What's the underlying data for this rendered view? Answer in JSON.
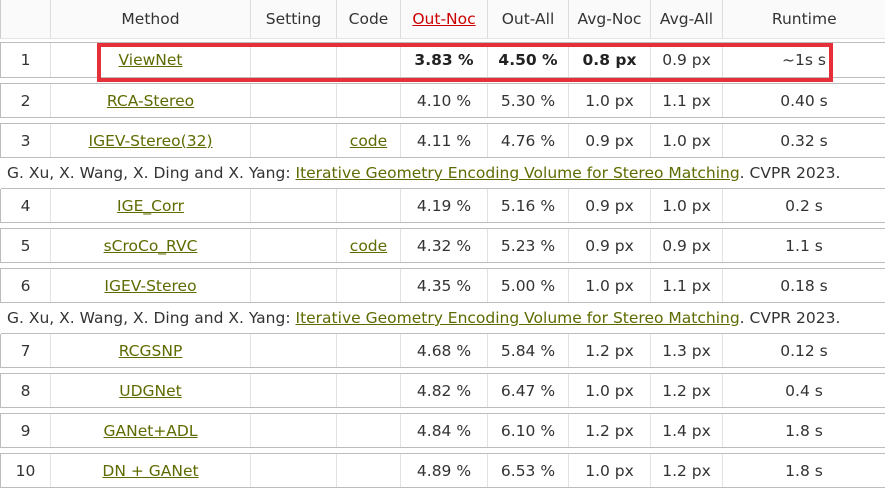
{
  "header": {
    "rank": "",
    "method": "Method",
    "setting": "Setting",
    "code": "Code",
    "out_noc": "Out-Noc",
    "out_all": "Out-All",
    "avg_noc": "Avg-Noc",
    "avg_all": "Avg-All",
    "runtime": "Runtime"
  },
  "rows": [
    {
      "rank": "1",
      "method": "ViewNet",
      "setting": "",
      "code": "",
      "out_noc": "3.83 %",
      "out_all": "4.50 %",
      "avg_noc": "0.8 px",
      "avg_all": "0.9 px",
      "runtime": "~1s s"
    },
    {
      "rank": "2",
      "method": "RCA-Stereo",
      "setting": "",
      "code": "",
      "out_noc": "4.10 %",
      "out_all": "5.30 %",
      "avg_noc": "1.0 px",
      "avg_all": "1.1 px",
      "runtime": "0.40 s"
    },
    {
      "rank": "3",
      "method": "IGEV-Stereo(32)",
      "setting": "",
      "code": "code",
      "out_noc": "4.11 %",
      "out_all": "4.76 %",
      "avg_noc": "0.9 px",
      "avg_all": "1.0 px",
      "runtime": "0.32 s"
    },
    {
      "rank": "4",
      "method": "IGE_Corr",
      "setting": "",
      "code": "",
      "out_noc": "4.19 %",
      "out_all": "5.16 %",
      "avg_noc": "0.9 px",
      "avg_all": "1.0 px",
      "runtime": "0.2 s"
    },
    {
      "rank": "5",
      "method": "sCroCo_RVC",
      "setting": "",
      "code": "code",
      "out_noc": "4.32 %",
      "out_all": "5.23 %",
      "avg_noc": "0.9 px",
      "avg_all": "0.9 px",
      "runtime": "1.1 s"
    },
    {
      "rank": "6",
      "method": "IGEV-Stereo",
      "setting": "",
      "code": "",
      "out_noc": "4.35 %",
      "out_all": "5.00 %",
      "avg_noc": "1.0 px",
      "avg_all": "1.1 px",
      "runtime": "0.18 s"
    },
    {
      "rank": "7",
      "method": "RCGSNP",
      "setting": "",
      "code": "",
      "out_noc": "4.68 %",
      "out_all": "5.84 %",
      "avg_noc": "1.2 px",
      "avg_all": "1.3 px",
      "runtime": "0.12 s"
    },
    {
      "rank": "8",
      "method": "UDGNet",
      "setting": "",
      "code": "",
      "out_noc": "4.82 %",
      "out_all": "6.47 %",
      "avg_noc": "1.0 px",
      "avg_all": "1.2 px",
      "runtime": "0.4 s"
    },
    {
      "rank": "9",
      "method": "GANet+ADL",
      "setting": "",
      "code": "",
      "out_noc": "4.84 %",
      "out_all": "6.10 %",
      "avg_noc": "1.2 px",
      "avg_all": "1.4 px",
      "runtime": "1.8 s"
    },
    {
      "rank": "10",
      "method": "DN + GANet",
      "setting": "",
      "code": "",
      "out_noc": "4.89 %",
      "out_all": "6.53 %",
      "avg_noc": "1.0 px",
      "avg_all": "1.2 px",
      "runtime": "1.8 s"
    }
  ],
  "citations": {
    "igev_32": {
      "authors": "G. Xu, X. Wang, X. Ding and X. Yang: ",
      "title": "Iterative Geometry Encoding Volume for Stereo Matching",
      "venue": ". CVPR 2023."
    },
    "igev": {
      "authors": "G. Xu, X. Wang, X. Ding and X. Yang: ",
      "title": "Iterative Geometry Encoding Volume for Stereo Matching",
      "venue": ". CVPR 2023."
    }
  },
  "colors": {
    "link": "#5f6b00",
    "sorted_header": "#cc0000",
    "highlight_box": "#e5303a"
  },
  "sorted_column": "Out-Noc"
}
